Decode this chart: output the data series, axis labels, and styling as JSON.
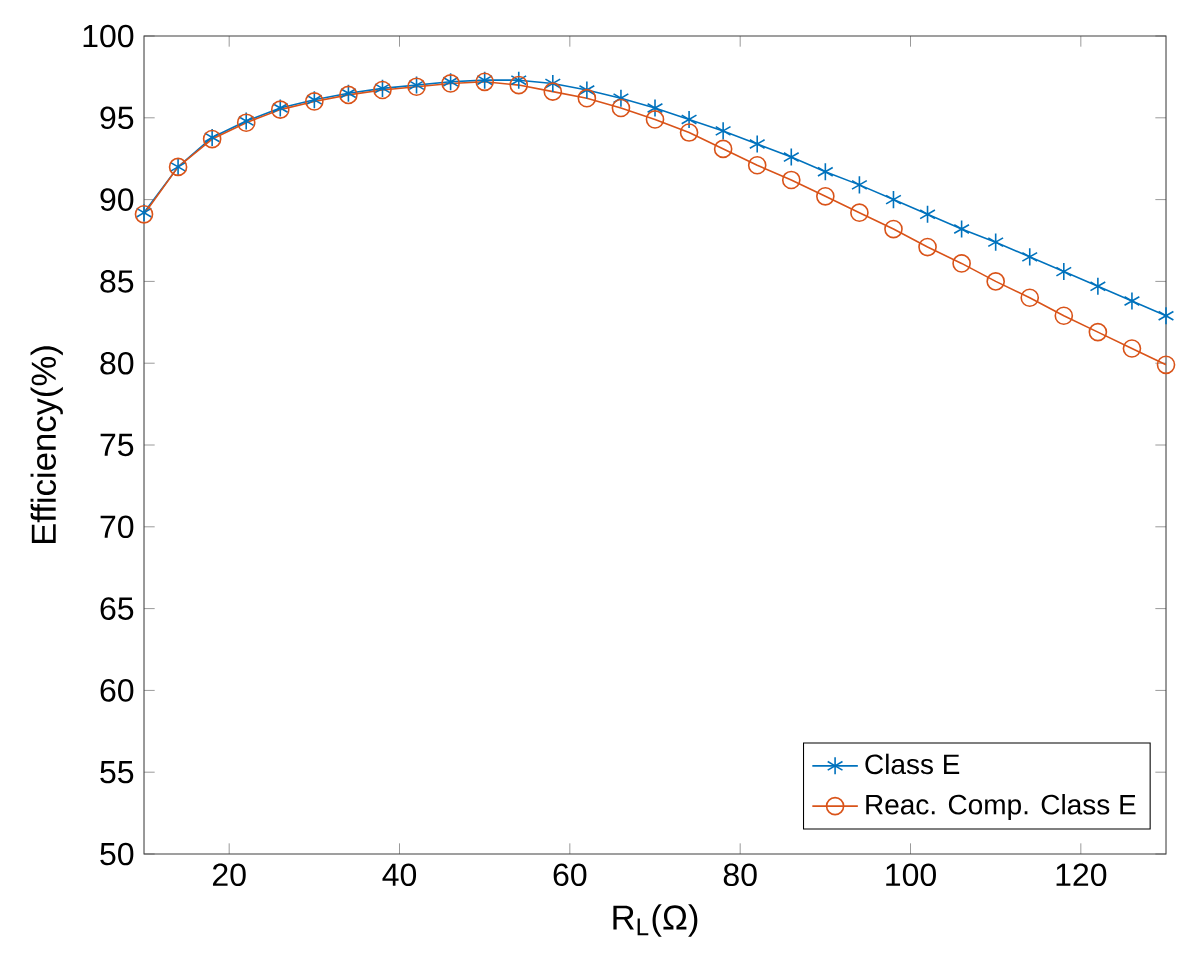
{
  "chart_data": {
    "type": "line",
    "xlabel": "R$_{L}$(Ω)",
    "ylabel": "Efficiency(%)",
    "x": [
      10,
      14,
      18,
      22,
      26,
      30,
      34,
      38,
      42,
      46,
      50,
      54,
      58,
      62,
      66,
      70,
      74,
      78,
      82,
      86,
      90,
      94,
      98,
      102,
      106,
      110,
      114,
      118,
      122,
      126,
      130
    ],
    "series": [
      {
        "name": "Class E",
        "color": "#0072bd",
        "marker": "cross",
        "values": [
          89.2,
          92.0,
          93.8,
          94.8,
          95.6,
          96.1,
          96.5,
          96.8,
          97.0,
          97.2,
          97.3,
          97.3,
          97.1,
          96.7,
          96.2,
          95.6,
          94.9,
          94.2,
          93.4,
          92.6,
          91.7,
          90.9,
          90.0,
          89.1,
          88.2,
          87.4,
          86.5,
          85.6,
          84.7,
          83.8,
          82.9
        ]
      },
      {
        "name": "Reac. Comp. Class E",
        "color": "#d95319",
        "marker": "circle",
        "values": [
          89.1,
          92.0,
          93.7,
          94.7,
          95.5,
          96.0,
          96.4,
          96.7,
          96.9,
          97.1,
          97.2,
          97.0,
          96.6,
          96.2,
          95.6,
          94.9,
          94.1,
          93.1,
          92.1,
          91.2,
          90.2,
          89.2,
          88.2,
          87.1,
          86.1,
          85.0,
          84.0,
          82.9,
          81.9,
          80.9,
          79.9
        ]
      }
    ],
    "xlim": [
      10,
      130
    ],
    "ylim": [
      50,
      100
    ],
    "xticks": [
      20,
      40,
      60,
      80,
      100,
      120
    ],
    "yticks": [
      50,
      55,
      60,
      65,
      70,
      75,
      80,
      85,
      90,
      95,
      100
    ],
    "grid": false,
    "legend": "bottom right",
    "line_style": "solid"
  }
}
